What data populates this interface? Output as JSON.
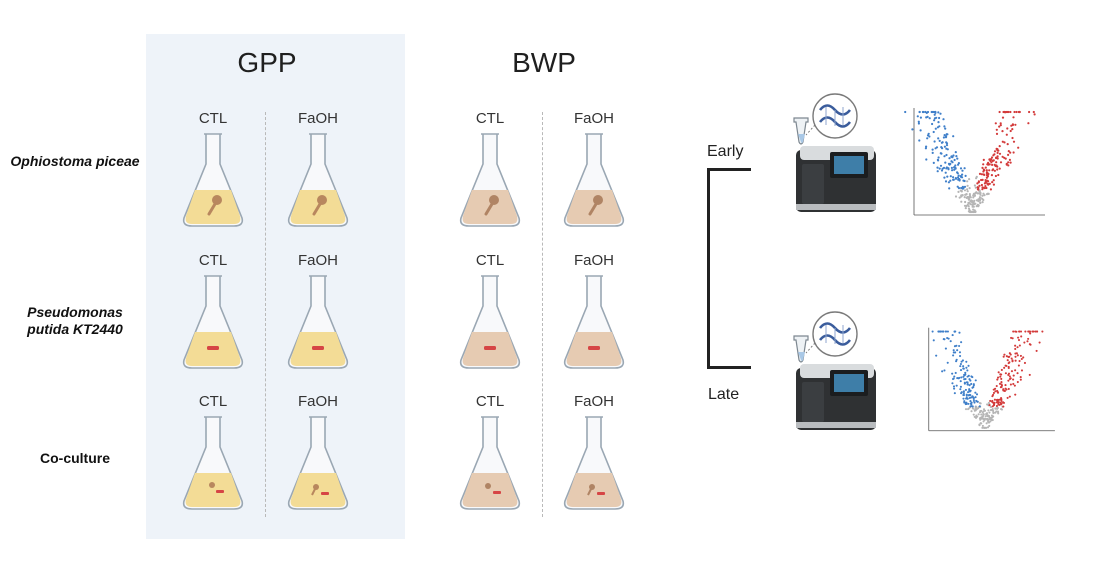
{
  "groups": {
    "gpp": {
      "title": "GPP",
      "ctl": "CTL",
      "faoh": "FaOH",
      "color": "#f3dc96"
    },
    "bwp": {
      "title": "BWP",
      "ctl": "CTL",
      "faoh": "FaOH",
      "color": "#e6cbb2"
    }
  },
  "organisms": [
    {
      "label": "Ophiostoma piceae"
    },
    {
      "label": "Pseudomonas putida KT2440"
    },
    {
      "label": "Co-culture"
    }
  ],
  "timepoints": {
    "early": "Early",
    "late": "Late"
  },
  "colors": {
    "panel_bg": "#eef3f9",
    "up": "#d33a3a",
    "down": "#3f7fc9",
    "ns": "#b5b5b5"
  }
}
